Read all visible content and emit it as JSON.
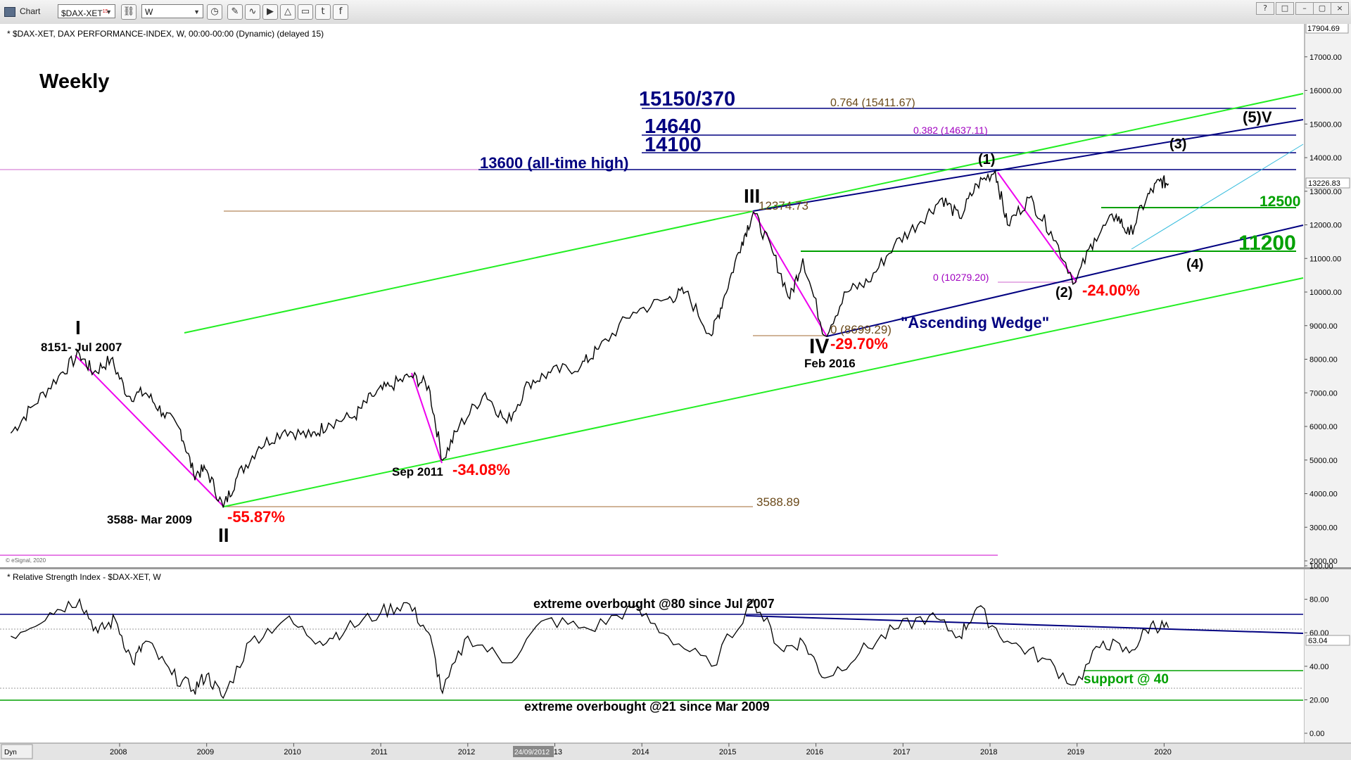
{
  "toolbar": {
    "app_title": "Chart",
    "symbol": "$DAX-XET",
    "symbol_superscript": "15",
    "interval": "W",
    "icons": [
      "link-icon",
      "clock-icon",
      "pencil-icon",
      "curve-icon",
      "play-icon",
      "triangle-icon",
      "chat-icon",
      "twitter-icon",
      "facebook-icon"
    ],
    "window_buttons": [
      "?",
      "□",
      "–",
      "▢",
      "×"
    ]
  },
  "price_panel": {
    "header": "* $DAX-XET, DAX PERFORMANCE-INDEX, W, 00:00-00:00 (Dynamic) (delayed 15)",
    "timeframe_label": "Weekly",
    "copyright": "© eSignal, 2020",
    "top_price_tag": "17904.69",
    "last_price_tag": "13226.83",
    "y_ticks": [
      "17000.00",
      "16000.00",
      "15000.00",
      "14000.00",
      "13000.00",
      "12000.00",
      "11000.00",
      "10000.00",
      "9000.00",
      "8000.00",
      "7000.00",
      "6000.00",
      "5000.00",
      "4000.00",
      "3000.00",
      "2000.00"
    ]
  },
  "annotations": {
    "level_15150": "15150/370",
    "fib_0764": "0.764 (15411.67)",
    "level_14640": "14640",
    "fib_0382": "0.382 (14637.11)",
    "level_14100": "14100",
    "level_13600": "13600 (all-time high)",
    "level_12500": "12500",
    "level_11200": "11200",
    "wave_I": "I",
    "wave_I_label": "8151- Jul 2007",
    "wave_II": "II",
    "wave_II_label": "3588- Mar 2009",
    "drop_2009": "-55.87%",
    "sep_2011": "Sep 2011",
    "drop_2011": "-34.08%",
    "level_3588": "3588.89",
    "wave_III": "III",
    "level_12374": "12374.73",
    "wave_IV": "IV",
    "wave_IV_label": "Feb 2016",
    "fib_0_8699": "0 (8699.29)",
    "drop_2016": "-29.70%",
    "ascending_wedge": "\"Ascending Wedge\"",
    "wave_1": "(1)",
    "wave_2": "(2)",
    "drop_2018": "-24.00%",
    "fib_0_10279": "0 (10279.20)",
    "wave_3": "(3)",
    "wave_4": "(4)",
    "wave_5V": "(5)V"
  },
  "rsi_panel": {
    "header": "* Relative Strength Index - $DAX-XET, W",
    "last_value_tag": "63.04",
    "y_ticks": [
      "100.00",
      "80.00",
      "60.00",
      "40.00",
      "20.00",
      "0.00"
    ],
    "label_overbought": "extreme overbought @80 since Jul 2007",
    "label_oversold": "extreme overbought @21 since Mar 2009",
    "label_support": "support @ 40"
  },
  "x_axis": {
    "dyn_label": "Dyn",
    "date_tag": "24/09/2012",
    "ticks": [
      "2008",
      "2009",
      "2010",
      "2011",
      "2012",
      "2013",
      "2014",
      "2015",
      "2016",
      "2017",
      "2018",
      "2019",
      "2020"
    ]
  },
  "chart_data": {
    "type": "line",
    "title": "$DAX-XET, DAX PERFORMANCE-INDEX, W",
    "price_ylim": [
      2000,
      18000
    ],
    "rsi_ylim": [
      0,
      100
    ],
    "price_series": {
      "name": "$DAX-XET",
      "points": [
        [
          2006.75,
          5800
        ],
        [
          2007.0,
          6600
        ],
        [
          2007.3,
          7500
        ],
        [
          2007.54,
          8151
        ],
        [
          2007.7,
          7600
        ],
        [
          2007.9,
          8000
        ],
        [
          2008.1,
          6900
        ],
        [
          2008.3,
          7000
        ],
        [
          2008.5,
          6400
        ],
        [
          2008.7,
          5900
        ],
        [
          2008.85,
          4600
        ],
        [
          2009.0,
          4700
        ],
        [
          2009.19,
          3588
        ],
        [
          2009.35,
          4500
        ],
        [
          2009.6,
          5400
        ],
        [
          2009.9,
          5900
        ],
        [
          2010.2,
          5700
        ],
        [
          2010.4,
          6100
        ],
        [
          2010.7,
          6300
        ],
        [
          2010.9,
          6900
        ],
        [
          2011.1,
          7200
        ],
        [
          2011.35,
          7500
        ],
        [
          2011.55,
          7200
        ],
        [
          2011.71,
          5000
        ],
        [
          2011.9,
          6000
        ],
        [
          2012.2,
          7000
        ],
        [
          2012.45,
          6100
        ],
        [
          2012.7,
          7300
        ],
        [
          2012.95,
          7600
        ],
        [
          2013.3,
          7800
        ],
        [
          2013.5,
          8300
        ],
        [
          2013.9,
          9400
        ],
        [
          2014.3,
          9800
        ],
        [
          2014.5,
          10000
        ],
        [
          2014.8,
          8700
        ],
        [
          2014.95,
          9900
        ],
        [
          2015.15,
          11500
        ],
        [
          2015.28,
          12374
        ],
        [
          2015.5,
          11200
        ],
        [
          2015.7,
          9800
        ],
        [
          2015.85,
          11000
        ],
        [
          2016.1,
          8699
        ],
        [
          2016.35,
          10000
        ],
        [
          2016.6,
          10300
        ],
        [
          2016.9,
          11400
        ],
        [
          2017.2,
          12100
        ],
        [
          2017.45,
          12800
        ],
        [
          2017.65,
          12200
        ],
        [
          2017.85,
          13200
        ],
        [
          2018.06,
          13600
        ],
        [
          2018.2,
          12000
        ],
        [
          2018.45,
          12800
        ],
        [
          2018.7,
          11800
        ],
        [
          2018.98,
          10279
        ],
        [
          2019.2,
          11600
        ],
        [
          2019.45,
          12300
        ],
        [
          2019.6,
          11700
        ],
        [
          2019.8,
          12800
        ],
        [
          2019.95,
          13300
        ],
        [
          2020.05,
          13226
        ]
      ]
    },
    "rsi_series": {
      "name": "RSI",
      "points": [
        [
          2006.75,
          58
        ],
        [
          2007.2,
          72
        ],
        [
          2007.54,
          80
        ],
        [
          2007.75,
          60
        ],
        [
          2007.95,
          68
        ],
        [
          2008.15,
          42
        ],
        [
          2008.3,
          55
        ],
        [
          2008.6,
          35
        ],
        [
          2008.85,
          26
        ],
        [
          2009.0,
          35
        ],
        [
          2009.19,
          21
        ],
        [
          2009.5,
          55
        ],
        [
          2009.9,
          68
        ],
        [
          2010.3,
          55
        ],
        [
          2010.6,
          62
        ],
        [
          2011.0,
          72
        ],
        [
          2011.3,
          78
        ],
        [
          2011.55,
          60
        ],
        [
          2011.71,
          24
        ],
        [
          2012.0,
          58
        ],
        [
          2012.45,
          42
        ],
        [
          2012.9,
          68
        ],
        [
          2013.4,
          62
        ],
        [
          2013.9,
          75
        ],
        [
          2014.3,
          58
        ],
        [
          2014.8,
          40
        ],
        [
          2015.28,
          80
        ],
        [
          2015.6,
          50
        ],
        [
          2015.85,
          55
        ],
        [
          2016.1,
          33
        ],
        [
          2016.5,
          48
        ],
        [
          2016.9,
          62
        ],
        [
          2017.3,
          70
        ],
        [
          2017.65,
          58
        ],
        [
          2017.85,
          75
        ],
        [
          2018.2,
          55
        ],
        [
          2018.6,
          45
        ],
        [
          2018.98,
          29
        ],
        [
          2019.3,
          55
        ],
        [
          2019.6,
          48
        ],
        [
          2019.85,
          65
        ],
        [
          2020.05,
          63
        ]
      ]
    },
    "horizontal_levels": [
      15411.67,
      14637.11,
      14100,
      13600,
      12500,
      11200,
      12374.73,
      8699.29,
      3588.89,
      10279.2
    ],
    "rsi_levels": [
      80,
      40,
      21
    ]
  },
  "colors": {
    "navy": "#000080",
    "green": "#00dd00",
    "dark_green": "#00a000",
    "magenta": "#ee00ee",
    "red": "#ff0000",
    "brown": "#8b5a2b",
    "cyan": "#33bbdd",
    "purple": "#a000c0"
  }
}
